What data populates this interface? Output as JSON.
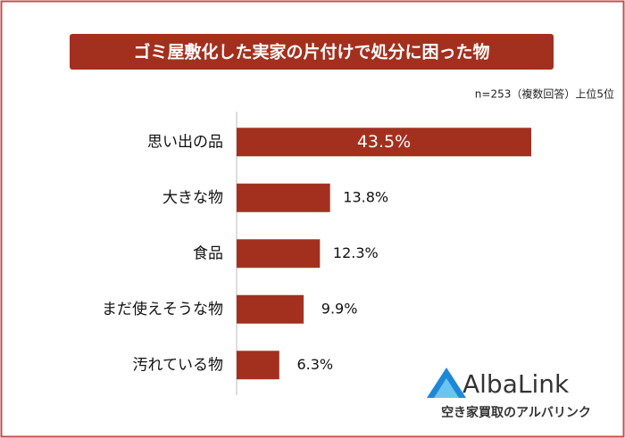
{
  "chart_data": {
    "type": "hbar",
    "title": "ゴミ屋敷化した実家の片付けで処分に困った物",
    "subtitle": "n=253（複数回答）上位5位",
    "categories": [
      "思い出の品",
      "大きな物",
      "食品",
      "まだ使えそうな物",
      "汚れている物"
    ],
    "values": [
      43.5,
      13.8,
      12.3,
      9.9,
      6.3
    ],
    "value_labels": [
      "43.5%",
      "13.8%",
      "12.3%",
      "9.9%",
      "6.3%"
    ],
    "color": "#a3301f"
  },
  "logo": {
    "name": "AlbaLink",
    "tagline": "空き家買取のアルバリンク"
  }
}
